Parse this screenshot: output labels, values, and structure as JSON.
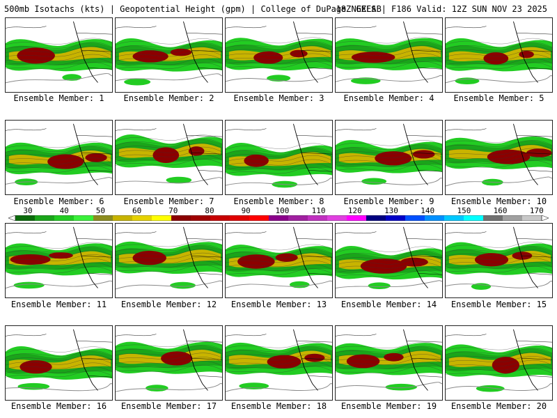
{
  "header": {
    "left": "500mb Isotachs (kts) | Geopotential Height (gpm) | College of DuPage NEXLAB",
    "right": "18Z GEFS | F186 Valid: 12Z SUN NOV 23 2025"
  },
  "colorbar": {
    "labels": [
      "30",
      "40",
      "50",
      "60",
      "70",
      "80",
      "90",
      "100",
      "110",
      "120",
      "130",
      "140",
      "150",
      "160",
      "170"
    ],
    "colors": [
      "#0b6b0b",
      "#1aa51a",
      "#22cc22",
      "#3af03a",
      "#8c8c1e",
      "#c8b400",
      "#e6d200",
      "#ffff00",
      "#8b0000",
      "#a00000",
      "#c80000",
      "#e10000",
      "#ff0000",
      "#8b008b",
      "#a020a0",
      "#c030c0",
      "#e040e0",
      "#ff00ff",
      "#000080",
      "#0000c8",
      "#0050ff",
      "#0090ff",
      "#00c8ff",
      "#00ffff",
      "#707070",
      "#a0a0a0",
      "#c8c8c8"
    ]
  },
  "members": [
    {
      "caption": "Ensemble Member: 1"
    },
    {
      "caption": "Ensemble Member: 2"
    },
    {
      "caption": "Ensemble Member: 3"
    },
    {
      "caption": "Ensemble Member: 4"
    },
    {
      "caption": "Ensemble Member: 5"
    },
    {
      "caption": "Ensemble Member: 6"
    },
    {
      "caption": "Ensemble Member: 7"
    },
    {
      "caption": "Ensemble Member: 8"
    },
    {
      "caption": "Ensemble Member: 9"
    },
    {
      "caption": "Ensemble Member: 10"
    },
    {
      "caption": "Ensemble Member: 11"
    },
    {
      "caption": "Ensemble Member: 12"
    },
    {
      "caption": "Ensemble Member: 13"
    },
    {
      "caption": "Ensemble Member: 14"
    },
    {
      "caption": "Ensemble Member: 15"
    },
    {
      "caption": "Ensemble Member: 16"
    },
    {
      "caption": "Ensemble Member: 17"
    },
    {
      "caption": "Ensemble Member: 18"
    },
    {
      "caption": "Ensemble Member: 19"
    },
    {
      "caption": "Ensemble Member: 20"
    }
  ]
}
